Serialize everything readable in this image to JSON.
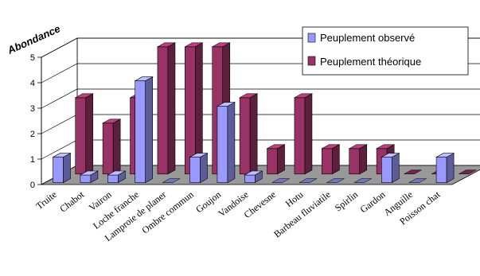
{
  "chart_data": {
    "type": "bar",
    "ylabel": "Abondance",
    "ylim": [
      0,
      5
    ],
    "yticks": [
      "0",
      "1",
      "2",
      "3",
      "4",
      "5"
    ],
    "categories": [
      "Truite",
      "Chabot",
      "Vairon",
      "Loche franche",
      "Lamproie de planer",
      "Ombre commun",
      "Goujon",
      "Vandoise",
      "Chevesne",
      "Hotu",
      "Barbeau fluviatile",
      "Spirlin",
      "Gardon",
      "Anguille",
      "Poisson chat"
    ],
    "series": [
      {
        "name": "Peuplement observé",
        "values": [
          1,
          0.3,
          0.3,
          4,
          0,
          1,
          3,
          0.3,
          0,
          0,
          0,
          0,
          1,
          0,
          1
        ],
        "color": "#9999ff"
      },
      {
        "name": "Peuplement théorique",
        "values": [
          3,
          2,
          3,
          5,
          5,
          5,
          3,
          1,
          3,
          1,
          1,
          1,
          0,
          0,
          0
        ],
        "color": "#993366"
      }
    ],
    "legend_position": "top-right",
    "grid": true
  }
}
